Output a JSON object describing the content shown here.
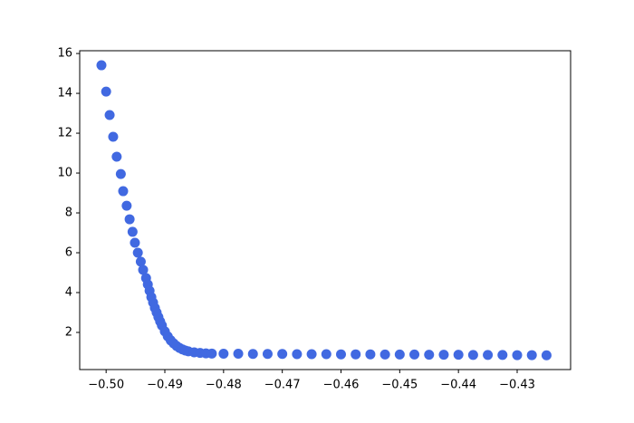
{
  "chart_data": {
    "type": "scatter",
    "color": "#4169e1",
    "x": [
      -0.5008,
      -0.5,
      -0.4994,
      -0.4988,
      -0.4982,
      -0.4975,
      -0.4971,
      -0.4965,
      -0.496,
      -0.4955,
      -0.4951,
      -0.4946,
      -0.4941,
      -0.4937,
      -0.4932,
      -0.4929,
      -0.4926,
      -0.4923,
      -0.492,
      -0.4917,
      -0.4914,
      -0.4911,
      -0.4908,
      -0.4905,
      -0.49,
      -0.4895,
      -0.489,
      -0.4885,
      -0.488,
      -0.4875,
      -0.487,
      -0.4865,
      -0.486,
      -0.485,
      -0.484,
      -0.483,
      -0.482,
      -0.48,
      -0.4775,
      -0.475,
      -0.4725,
      -0.47,
      -0.4675,
      -0.465,
      -0.4625,
      -0.46,
      -0.4575,
      -0.455,
      -0.4525,
      -0.45,
      -0.4475,
      -0.445,
      -0.4425,
      -0.44,
      -0.4375,
      -0.435,
      -0.4325,
      -0.43,
      -0.4275,
      -0.425
    ],
    "values": [
      15.41,
      14.09,
      12.91,
      11.82,
      10.82,
      9.95,
      9.09,
      8.36,
      7.68,
      7.05,
      6.5,
      6.0,
      5.55,
      5.14,
      4.73,
      4.41,
      4.09,
      3.77,
      3.5,
      3.23,
      3.0,
      2.77,
      2.55,
      2.35,
      2.05,
      1.8,
      1.6,
      1.45,
      1.32,
      1.22,
      1.15,
      1.09,
      1.05,
      1.0,
      0.97,
      0.95,
      0.94,
      0.93,
      0.93,
      0.92,
      0.92,
      0.92,
      0.91,
      0.91,
      0.91,
      0.9,
      0.9,
      0.9,
      0.89,
      0.89,
      0.89,
      0.88,
      0.88,
      0.88,
      0.87,
      0.87,
      0.87,
      0.86,
      0.86,
      0.85
    ],
    "xlim": [
      -0.5045,
      -0.4209
    ],
    "ylim": [
      0.136,
      16.14
    ],
    "xticks": [
      {
        "value": -0.5,
        "label": "−0.50"
      },
      {
        "value": -0.49,
        "label": "−0.49"
      },
      {
        "value": -0.48,
        "label": "−0.48"
      },
      {
        "value": -0.47,
        "label": "−0.47"
      },
      {
        "value": -0.46,
        "label": "−0.46"
      },
      {
        "value": -0.45,
        "label": "−0.45"
      },
      {
        "value": -0.44,
        "label": "−0.44"
      },
      {
        "value": -0.43,
        "label": "−0.43"
      }
    ],
    "yticks": [
      2,
      4,
      6,
      8,
      10,
      12,
      14,
      16
    ],
    "grid": false
  }
}
